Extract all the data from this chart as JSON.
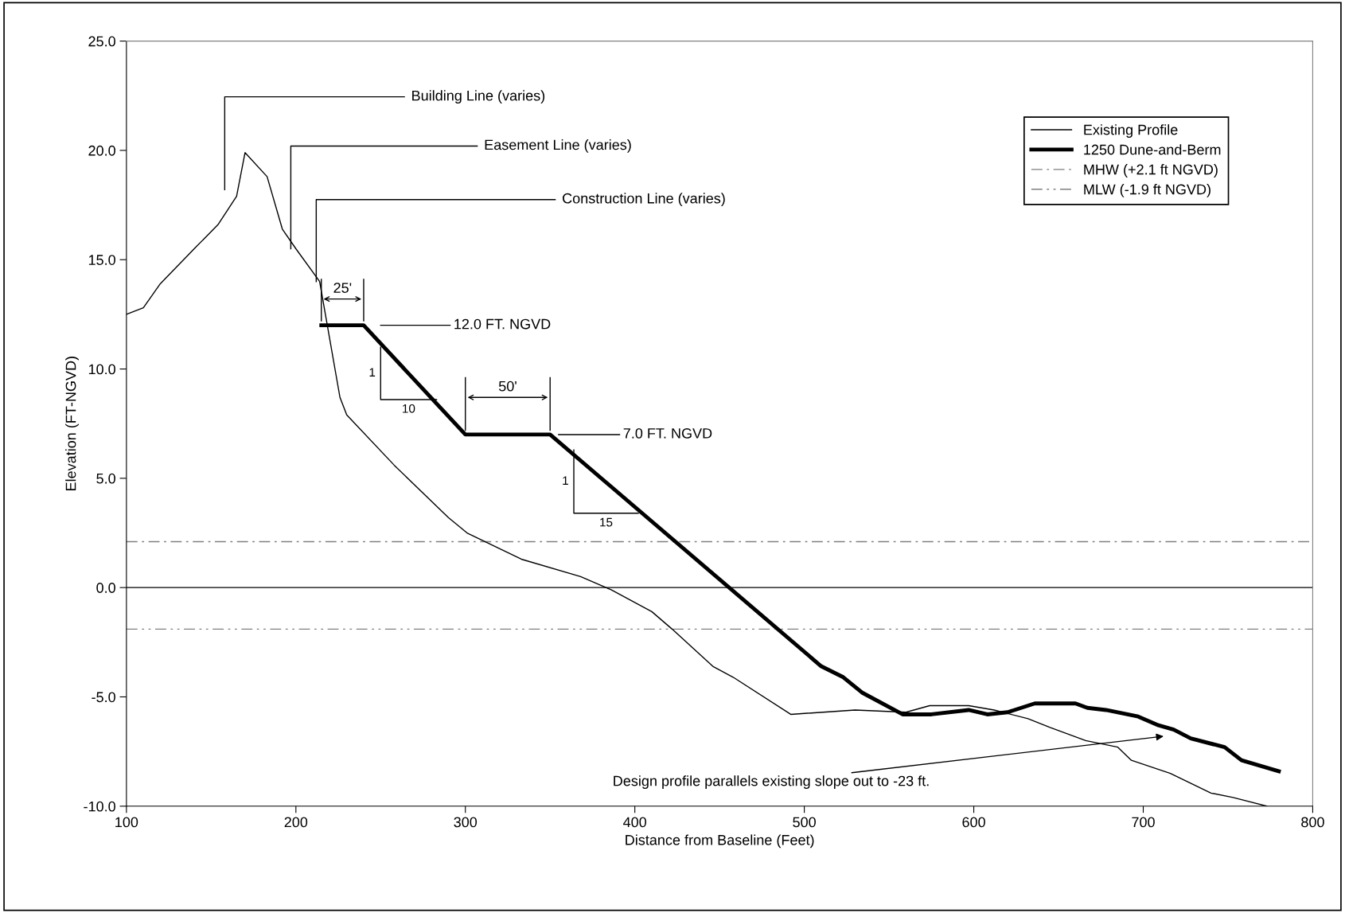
{
  "chart_data": {
    "type": "line",
    "xlabel": "Distance from Baseline (Feet)",
    "ylabel": "Elevation (FT-NGVD)",
    "xlim": [
      100,
      800
    ],
    "xticks": [
      100,
      200,
      300,
      400,
      500,
      600,
      700,
      800
    ],
    "ylim": [
      -10,
      25
    ],
    "yticks": [
      {
        "value": -10,
        "label": "-10.0"
      },
      {
        "value": -5,
        "label": "-5.0"
      },
      {
        "value": 0,
        "label": "0.0"
      },
      {
        "value": 5,
        "label": "5.0"
      },
      {
        "value": 10,
        "label": "10.0"
      },
      {
        "value": 15,
        "label": "15.0"
      },
      {
        "value": 20,
        "label": "20.0"
      },
      {
        "value": 25,
        "label": "25.0"
      }
    ],
    "grid": false,
    "legend": "top right",
    "marker": "none",
    "series": [
      {
        "name": "Existing Profile",
        "color": "#000000",
        "line_style": "solid",
        "x": [
          100,
          110,
          120,
          140,
          154,
          165,
          170,
          183,
          192,
          200,
          214,
          226,
          230,
          258,
          290,
          301,
          333,
          368,
          386,
          410,
          422,
          446,
          458,
          492,
          530,
          560,
          574,
          597,
          612,
          632,
          645,
          666,
          685,
          693,
          716,
          740,
          753,
          773
        ],
        "values": [
          12.5,
          12.8,
          13.9,
          15.5,
          16.6,
          17.9,
          19.9,
          18.8,
          16.4,
          15.5,
          14.0,
          8.7,
          7.9,
          5.6,
          3.2,
          2.5,
          1.3,
          0.5,
          -0.1,
          -1.1,
          -1.9,
          -3.6,
          -4.1,
          -5.8,
          -5.6,
          -5.7,
          -5.4,
          -5.4,
          -5.6,
          -6.0,
          -6.4,
          -7.0,
          -7.3,
          -7.9,
          -8.5,
          -9.4,
          -9.6,
          -10.0
        ]
      },
      {
        "name": "1250 Dune-and-Berm",
        "color": "#000000",
        "line_style": "solid",
        "x": [
          215,
          240,
          300,
          350,
          510,
          523,
          534,
          558,
          575,
          597,
          608,
          620,
          636,
          660,
          667,
          678,
          697,
          709,
          718,
          728,
          748,
          758,
          780
        ],
        "values": [
          12.0,
          12.0,
          7.0,
          7.0,
          -3.6,
          -4.1,
          -4.8,
          -5.8,
          -5.8,
          -5.6,
          -5.8,
          -5.7,
          -5.3,
          -5.3,
          -5.5,
          -5.6,
          -5.9,
          -6.3,
          -6.5,
          -6.9,
          -7.3,
          -7.9,
          -8.4
        ]
      }
    ],
    "ref_lines": [
      {
        "axis": "y",
        "value": 2.1,
        "label": "MHW (+2.1 ft NGVD)",
        "color": "#808080",
        "line_style": "dashdot"
      },
      {
        "axis": "y",
        "value": -1.9,
        "label": "MLW (-1.9 ft NGVD)",
        "color": "#808080",
        "line_style": "dashdotdot"
      },
      {
        "axis": "y",
        "value": 0,
        "color": "#000000",
        "line_style": "solid"
      }
    ],
    "annotations": [
      "Building Line (varies)",
      "Easement Line (varies)",
      {
        "text": "Construction Line (varies)",
        "x": 212,
        "y": 14.0
      },
      "25'",
      "12.0 FT. NGVD",
      "1",
      "10",
      "50'",
      "7.0 FT. NGVD",
      "1",
      "15",
      "Design profile parallels existing slope out to -23 ft."
    ]
  }
}
